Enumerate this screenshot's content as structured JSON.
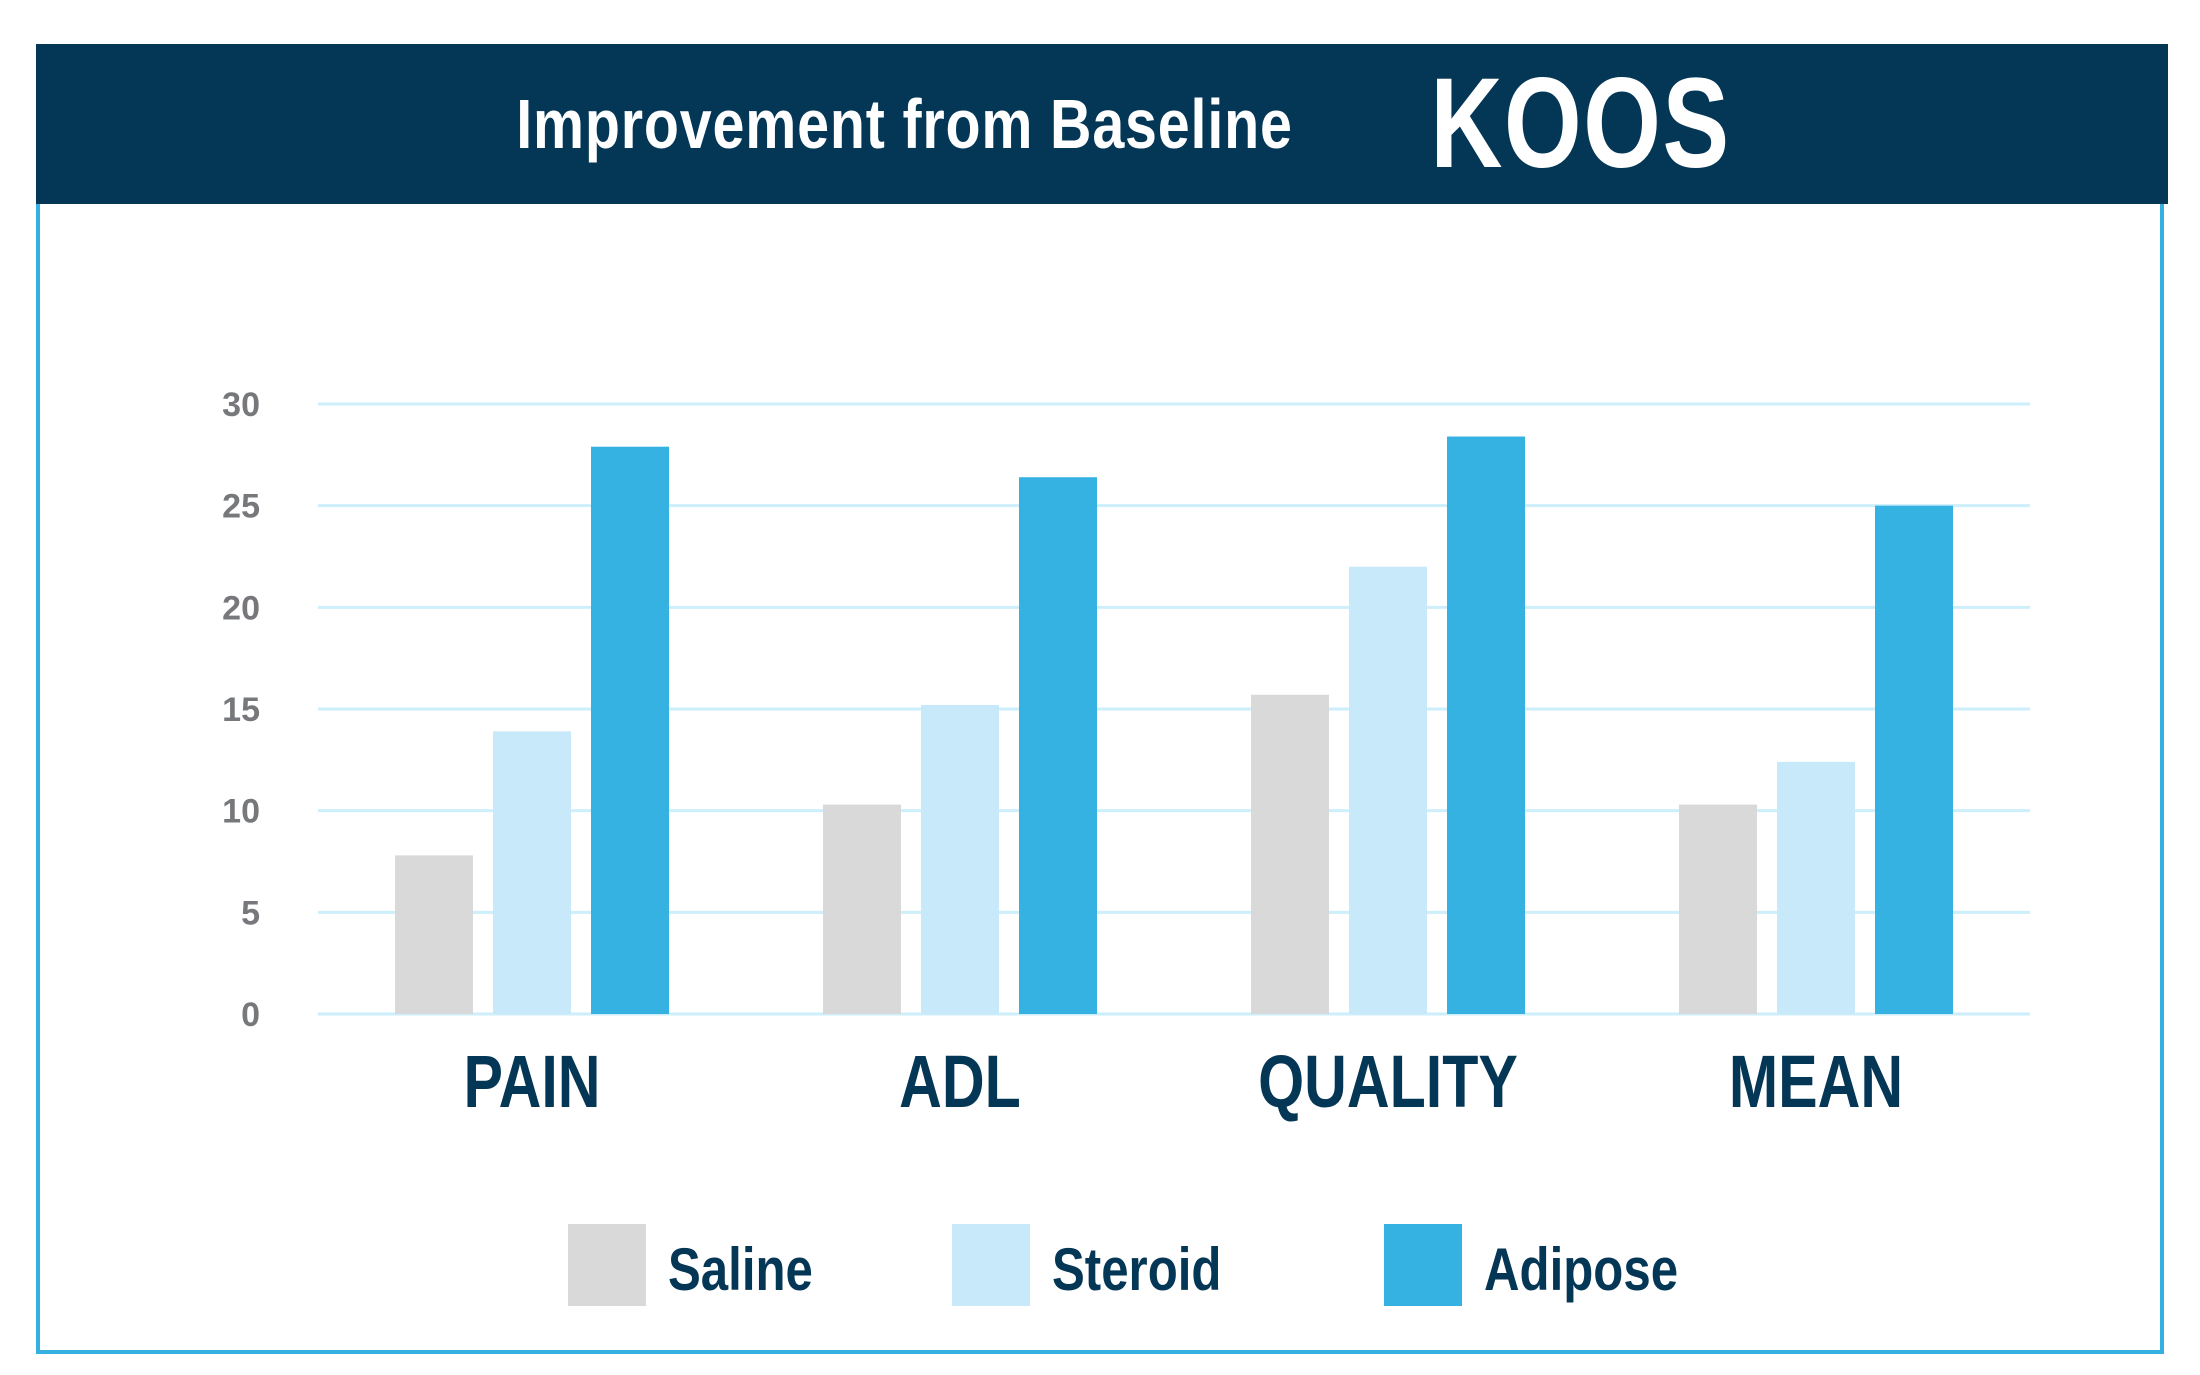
{
  "header": {
    "title_prefix": "Improvement from Baseline",
    "title_emphasis": "KOOS"
  },
  "colors": {
    "header_bg": "#043656",
    "frame_border": "#36b0e0",
    "grid": "#cdeefb",
    "tick_text": "#77787b",
    "label_text": "#043656"
  },
  "chart_data": {
    "type": "bar",
    "title": "Improvement from Baseline KOOS",
    "xlabel": "",
    "ylabel": "",
    "ylim": [
      0,
      30
    ],
    "yticks": [
      "0",
      "5",
      "10",
      "15",
      "20",
      "25",
      "30"
    ],
    "grid": true,
    "legend_position": "bottom",
    "categories": [
      "PAIN",
      "ADL",
      "QUALITY",
      "MEAN"
    ],
    "series": [
      {
        "name": "Saline",
        "color": "#d9d9d9",
        "values": [
          7.8,
          10.3,
          15.7,
          10.3
        ]
      },
      {
        "name": "Steroid",
        "color": "#c8e9fa",
        "values": [
          13.9,
          15.2,
          22.0,
          12.4
        ]
      },
      {
        "name": "Adipose",
        "color": "#35b2e2",
        "values": [
          27.9,
          26.4,
          28.4,
          25.0
        ]
      }
    ]
  }
}
